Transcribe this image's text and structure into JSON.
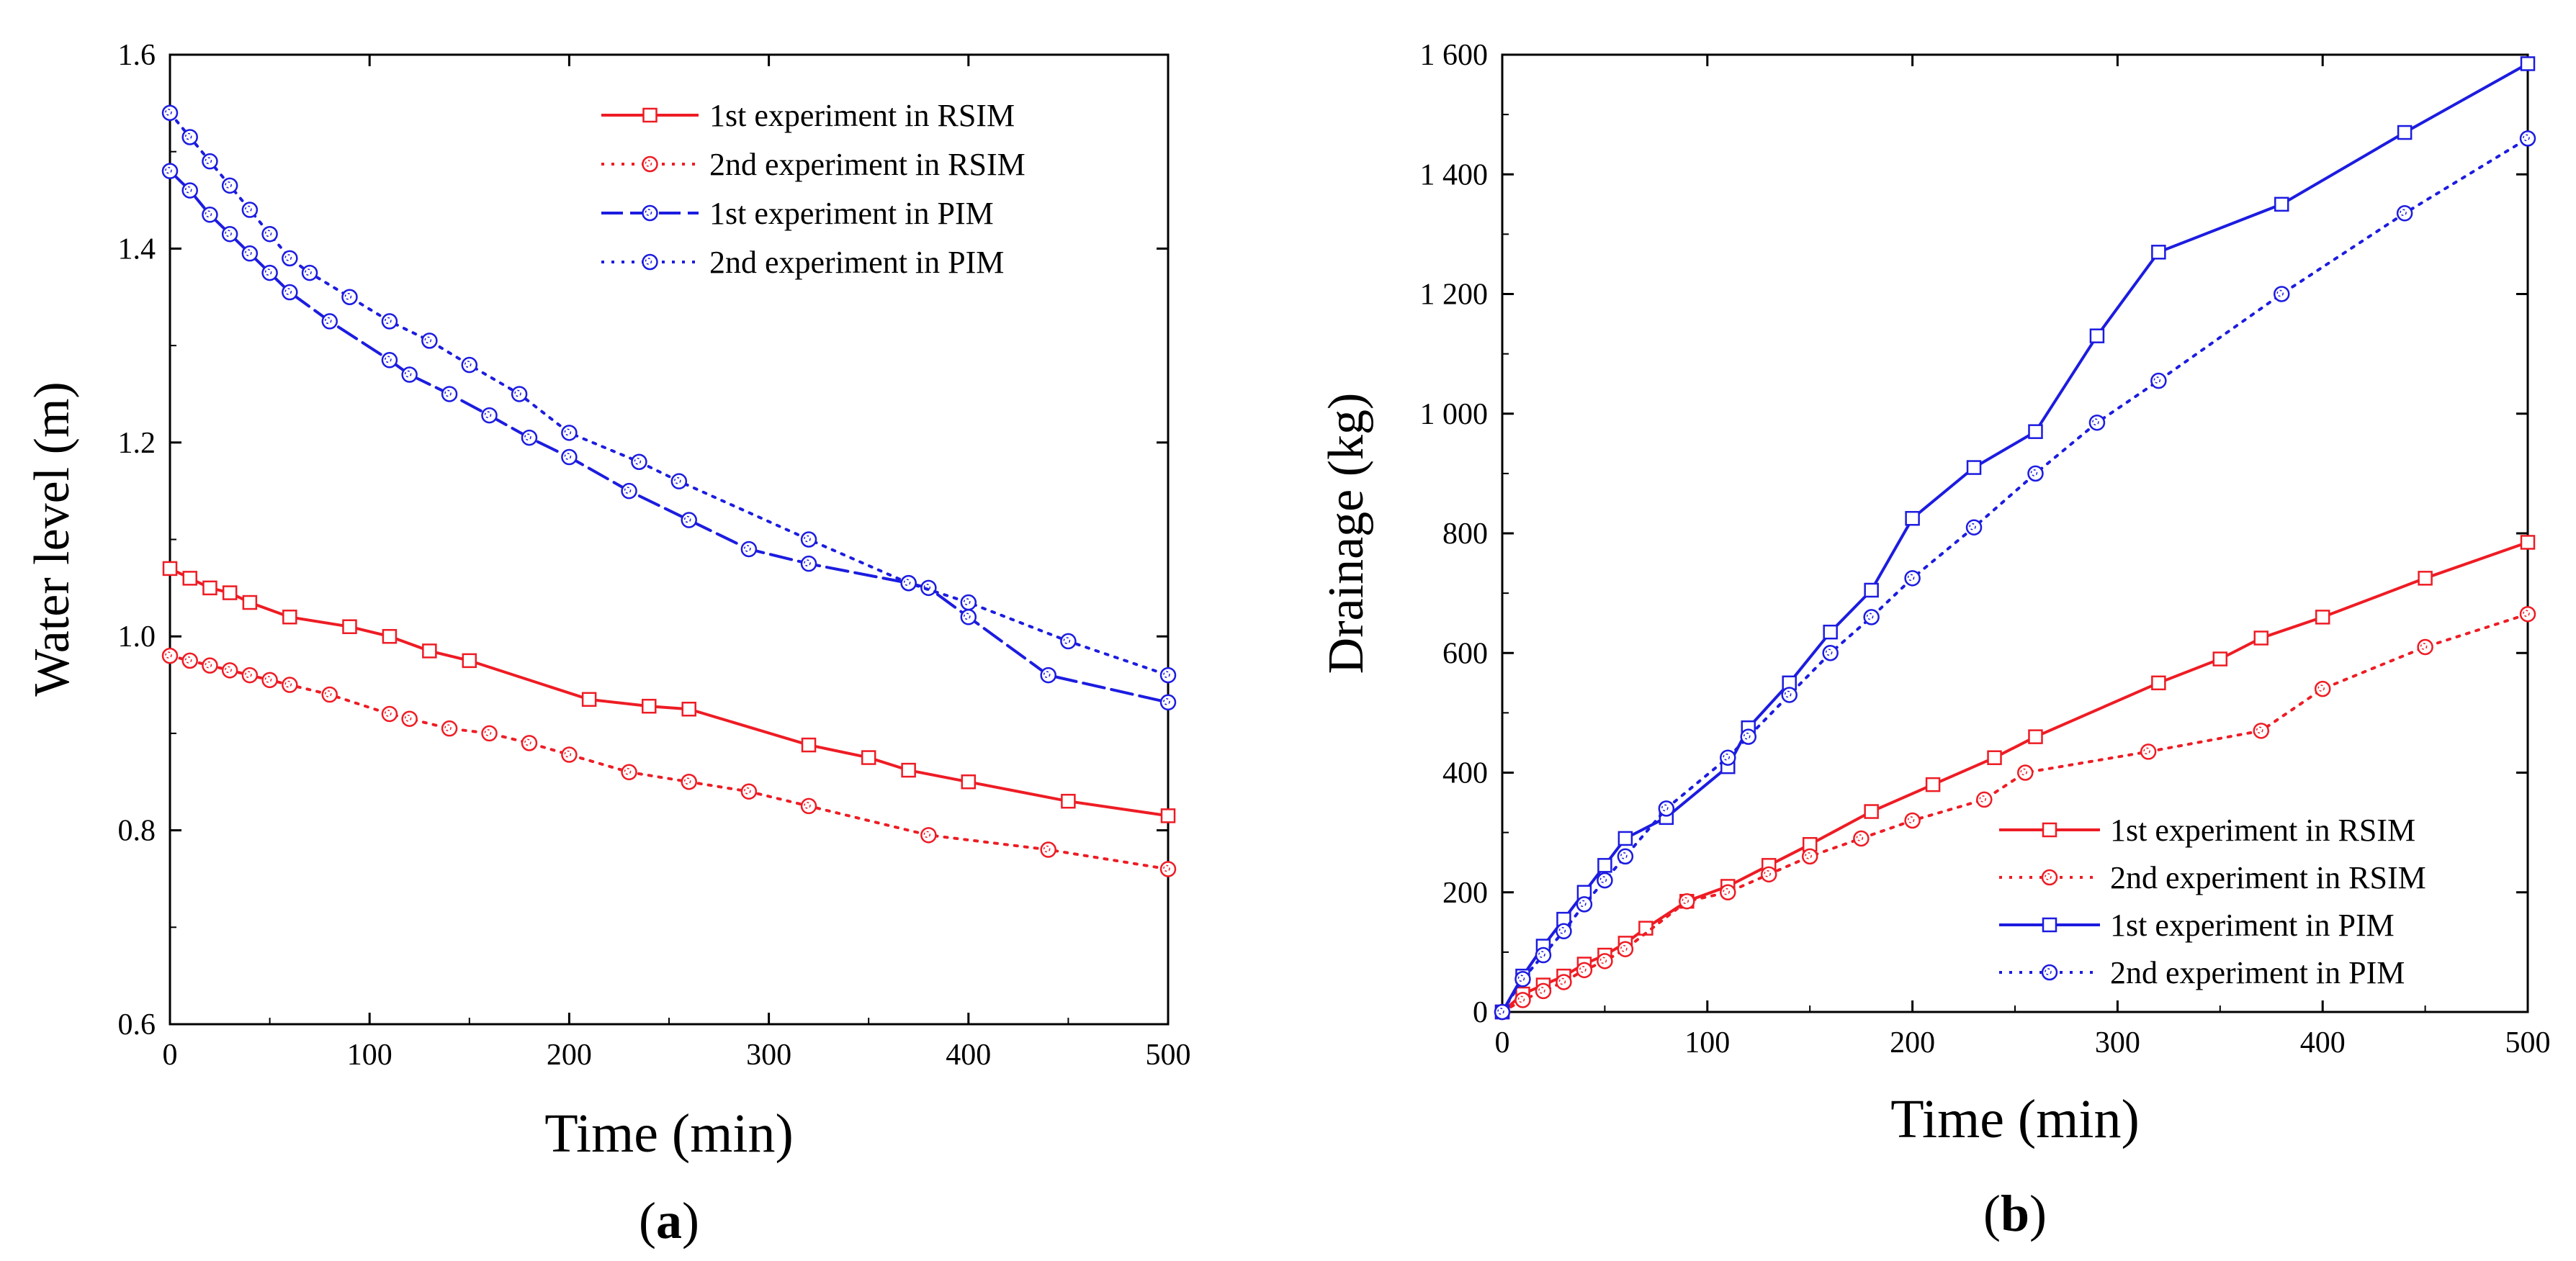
{
  "colors": {
    "rsim": "#ee1c24",
    "pim": "#1c1ce0",
    "axis": "#000000"
  },
  "panel_labels": {
    "a": "a",
    "b": "b"
  },
  "chart_data": [
    {
      "id": "a",
      "type": "line",
      "xlabel": "Time (min)",
      "ylabel": "Water level (m)",
      "xlim": [
        0,
        500
      ],
      "ylim": [
        0.6,
        1.6
      ],
      "xticks": [
        0,
        100,
        200,
        300,
        400,
        500
      ],
      "xtick_labels": [
        "0",
        "100",
        "200",
        "300",
        "400",
        "500"
      ],
      "yticks": [
        0.6,
        0.8,
        1.0,
        1.2,
        1.4,
        1.6
      ],
      "ytick_labels": [
        "0.6",
        "0.8",
        "1.0",
        "1.2",
        "1.4",
        "1.6"
      ],
      "legend_position": "top-right",
      "series": [
        {
          "name": "1st experiment in RSIM",
          "color": "#ee1c24",
          "style": "solid",
          "marker": "square",
          "x": [
            0,
            10,
            20,
            30,
            40,
            60,
            90,
            110,
            130,
            150,
            210,
            240,
            260,
            320,
            350,
            370,
            400,
            450,
            500
          ],
          "y": [
            1.07,
            1.06,
            1.05,
            1.045,
            1.035,
            1.02,
            1.01,
            1.0,
            0.985,
            0.975,
            0.935,
            0.928,
            0.925,
            0.888,
            0.875,
            0.862,
            0.85,
            0.83,
            0.815
          ]
        },
        {
          "name": "2nd experiment in RSIM",
          "color": "#ee1c24",
          "style": "dotted",
          "marker": "circle",
          "x": [
            0,
            10,
            20,
            30,
            40,
            50,
            60,
            80,
            110,
            120,
            140,
            160,
            180,
            200,
            230,
            260,
            290,
            320,
            380,
            440,
            500
          ],
          "y": [
            0.98,
            0.975,
            0.97,
            0.965,
            0.96,
            0.955,
            0.95,
            0.94,
            0.92,
            0.915,
            0.905,
            0.9,
            0.89,
            0.878,
            0.86,
            0.85,
            0.84,
            0.825,
            0.795,
            0.78,
            0.76
          ]
        },
        {
          "name": "1st experiment in PIM",
          "color": "#1c1ce0",
          "style": "dashed",
          "marker": "circle",
          "x": [
            0,
            10,
            20,
            30,
            40,
            50,
            60,
            80,
            110,
            120,
            140,
            160,
            180,
            200,
            230,
            260,
            290,
            320,
            370,
            380,
            400,
            440,
            500
          ],
          "y": [
            1.48,
            1.46,
            1.435,
            1.415,
            1.395,
            1.375,
            1.355,
            1.325,
            1.285,
            1.27,
            1.25,
            1.228,
            1.205,
            1.185,
            1.15,
            1.12,
            1.09,
            1.075,
            1.055,
            1.05,
            1.02,
            0.96,
            0.932
          ]
        },
        {
          "name": "2nd experiment in PIM",
          "color": "#1c1ce0",
          "style": "dotted",
          "marker": "circle",
          "x": [
            0,
            10,
            20,
            30,
            40,
            50,
            60,
            70,
            90,
            110,
            130,
            150,
            175,
            200,
            235,
            255,
            320,
            370,
            400,
            450,
            500
          ],
          "y": [
            1.54,
            1.515,
            1.49,
            1.465,
            1.44,
            1.415,
            1.39,
            1.375,
            1.35,
            1.325,
            1.305,
            1.28,
            1.25,
            1.21,
            1.18,
            1.16,
            1.1,
            1.055,
            1.035,
            0.995,
            0.96
          ]
        }
      ],
      "legend": [
        "1st experiment in RSIM",
        "2nd experiment in RSIM",
        "1st experiment in PIM",
        "2nd experiment in PIM"
      ]
    },
    {
      "id": "b",
      "type": "line",
      "xlabel": "Time (min)",
      "ylabel": "Drainage (kg)",
      "xlim": [
        0,
        500
      ],
      "ylim": [
        0,
        1600
      ],
      "xticks": [
        0,
        100,
        200,
        300,
        400,
        500
      ],
      "xtick_labels": [
        "0",
        "100",
        "200",
        "300",
        "400",
        "500"
      ],
      "yticks": [
        0,
        200,
        400,
        600,
        800,
        1000,
        1200,
        1400,
        1600
      ],
      "ytick_labels": [
        "0",
        "200",
        "400",
        "600",
        "800",
        "1 000",
        "1 200",
        "1 400",
        "1 600"
      ],
      "legend_position": "bottom-right",
      "series": [
        {
          "name": "1st experiment in RSIM",
          "color": "#ee1c24",
          "style": "solid",
          "marker": "square",
          "x": [
            0,
            10,
            20,
            30,
            40,
            50,
            60,
            70,
            90,
            110,
            130,
            150,
            180,
            210,
            240,
            260,
            320,
            350,
            370,
            400,
            450,
            500
          ],
          "y": [
            0,
            30,
            45,
            60,
            80,
            95,
            115,
            140,
            185,
            210,
            245,
            280,
            335,
            380,
            425,
            460,
            550,
            590,
            625,
            660,
            725,
            785
          ]
        },
        {
          "name": "2nd experiment in RSIM",
          "color": "#ee1c24",
          "style": "dotted",
          "marker": "circle",
          "x": [
            0,
            10,
            20,
            30,
            40,
            50,
            60,
            90,
            110,
            130,
            150,
            175,
            200,
            235,
            255,
            315,
            370,
            400,
            450,
            500
          ],
          "y": [
            0,
            20,
            35,
            50,
            70,
            85,
            105,
            185,
            200,
            230,
            260,
            290,
            320,
            355,
            400,
            435,
            470,
            540,
            610,
            665
          ]
        },
        {
          "name": "1st experiment in PIM",
          "color": "#1c1ce0",
          "style": "solid",
          "marker": "square",
          "x": [
            0,
            10,
            20,
            30,
            40,
            50,
            60,
            80,
            110,
            120,
            140,
            160,
            180,
            200,
            230,
            260,
            290,
            320,
            380,
            440,
            500
          ],
          "y": [
            0,
            60,
            110,
            155,
            200,
            245,
            290,
            325,
            410,
            475,
            550,
            635,
            705,
            825,
            910,
            970,
            1130,
            1270,
            1350,
            1470,
            1585
          ]
        },
        {
          "name": "2nd experiment in PIM",
          "color": "#1c1ce0",
          "style": "dotted",
          "marker": "circle",
          "x": [
            0,
            10,
            20,
            30,
            40,
            50,
            60,
            80,
            110,
            120,
            140,
            160,
            180,
            200,
            230,
            260,
            290,
            320,
            380,
            440,
            500
          ],
          "y": [
            0,
            55,
            95,
            135,
            180,
            220,
            260,
            340,
            425,
            460,
            530,
            600,
            660,
            725,
            810,
            900,
            985,
            1055,
            1200,
            1335,
            1460
          ]
        }
      ],
      "legend": [
        "1st experiment in RSIM",
        "2nd experiment in RSIM",
        "1st experiment in PIM",
        "2nd experiment in PIM"
      ]
    }
  ]
}
